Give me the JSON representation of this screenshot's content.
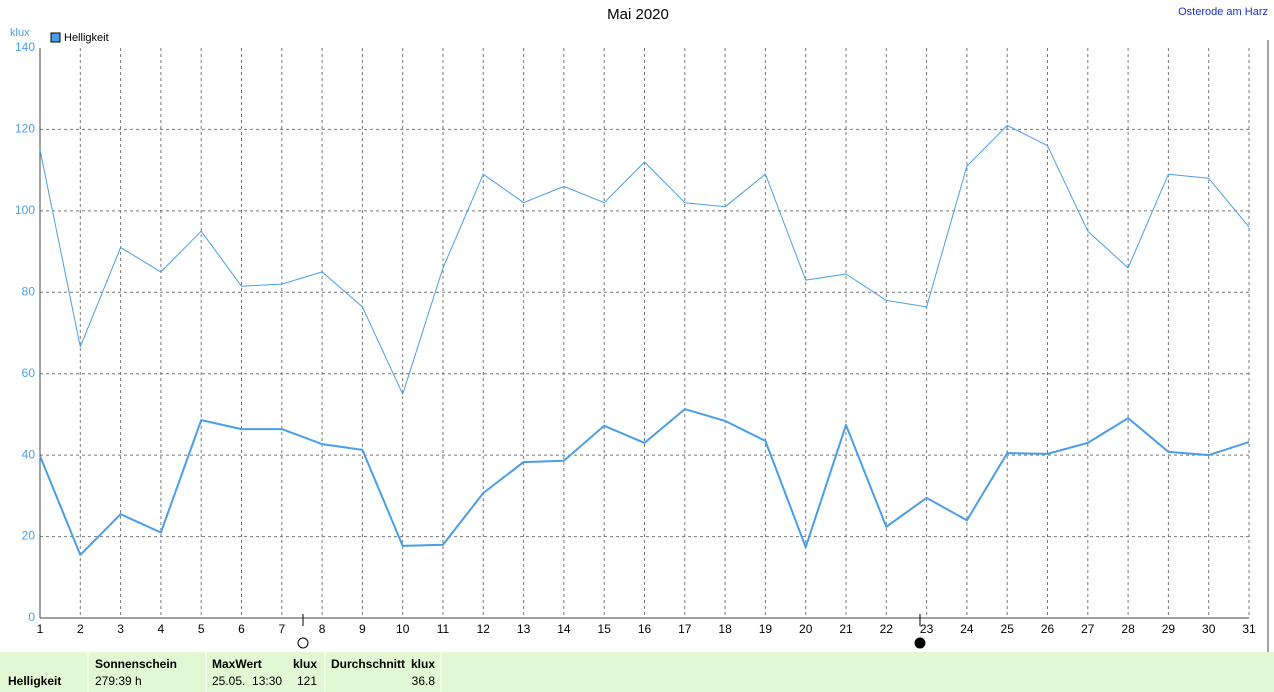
{
  "chart_data": {
    "type": "line",
    "title": "Mai 2020",
    "location": "Osterode am Harz",
    "y_label": "klux",
    "x": [
      1,
      2,
      3,
      4,
      5,
      6,
      7,
      8,
      9,
      10,
      11,
      12,
      13,
      14,
      15,
      16,
      17,
      18,
      19,
      20,
      21,
      22,
      23,
      24,
      25,
      26,
      27,
      28,
      29,
      30,
      31
    ],
    "xlim": [
      1,
      31
    ],
    "xticks": [
      1,
      2,
      3,
      4,
      5,
      6,
      7,
      8,
      9,
      10,
      11,
      12,
      13,
      14,
      15,
      16,
      17,
      18,
      19,
      20,
      21,
      22,
      23,
      24,
      25,
      26,
      27,
      28,
      29,
      30,
      31
    ],
    "ylim": [
      0,
      140
    ],
    "yticks": [
      0,
      20,
      40,
      60,
      80,
      100,
      120,
      140
    ],
    "grid": true,
    "legend": "top-left",
    "series": [
      {
        "name": "Helligkeit",
        "color": "#4a9ee8",
        "width": 2,
        "values": [
          39.8,
          15.5,
          25.5,
          21,
          48.6,
          46.4,
          46.4,
          42.7,
          41.3,
          17.7,
          18,
          30.7,
          38.3,
          38.6,
          47.2,
          43,
          51.3,
          48.4,
          43.5,
          17.4,
          47.4,
          22.4,
          29.5,
          24,
          40.5,
          40.3,
          43,
          49.1,
          40.8,
          40,
          43.2
        ]
      },
      {
        "color": "#4a9ee8",
        "width": 1,
        "values": [
          115,
          66.6,
          91,
          85,
          95,
          81.5,
          82,
          85,
          76.4,
          55,
          86,
          109,
          102,
          106,
          102,
          112,
          102,
          101,
          109,
          83,
          84.5,
          78,
          76.4,
          111,
          121,
          116,
          95,
          86,
          109,
          108,
          96
        ]
      }
    ]
  },
  "summary_table": {
    "row_label": "Helligkeit",
    "sunshine_header": "Sonnenschein",
    "sunshine_value": "279:39 h",
    "max_header": "MaxWert",
    "max_unit": "klux",
    "max_time": "25.05.  13:30",
    "max_value": "121",
    "avg_header": "Durchschnitt",
    "avg_unit": "klux",
    "avg_value": "36.8"
  }
}
